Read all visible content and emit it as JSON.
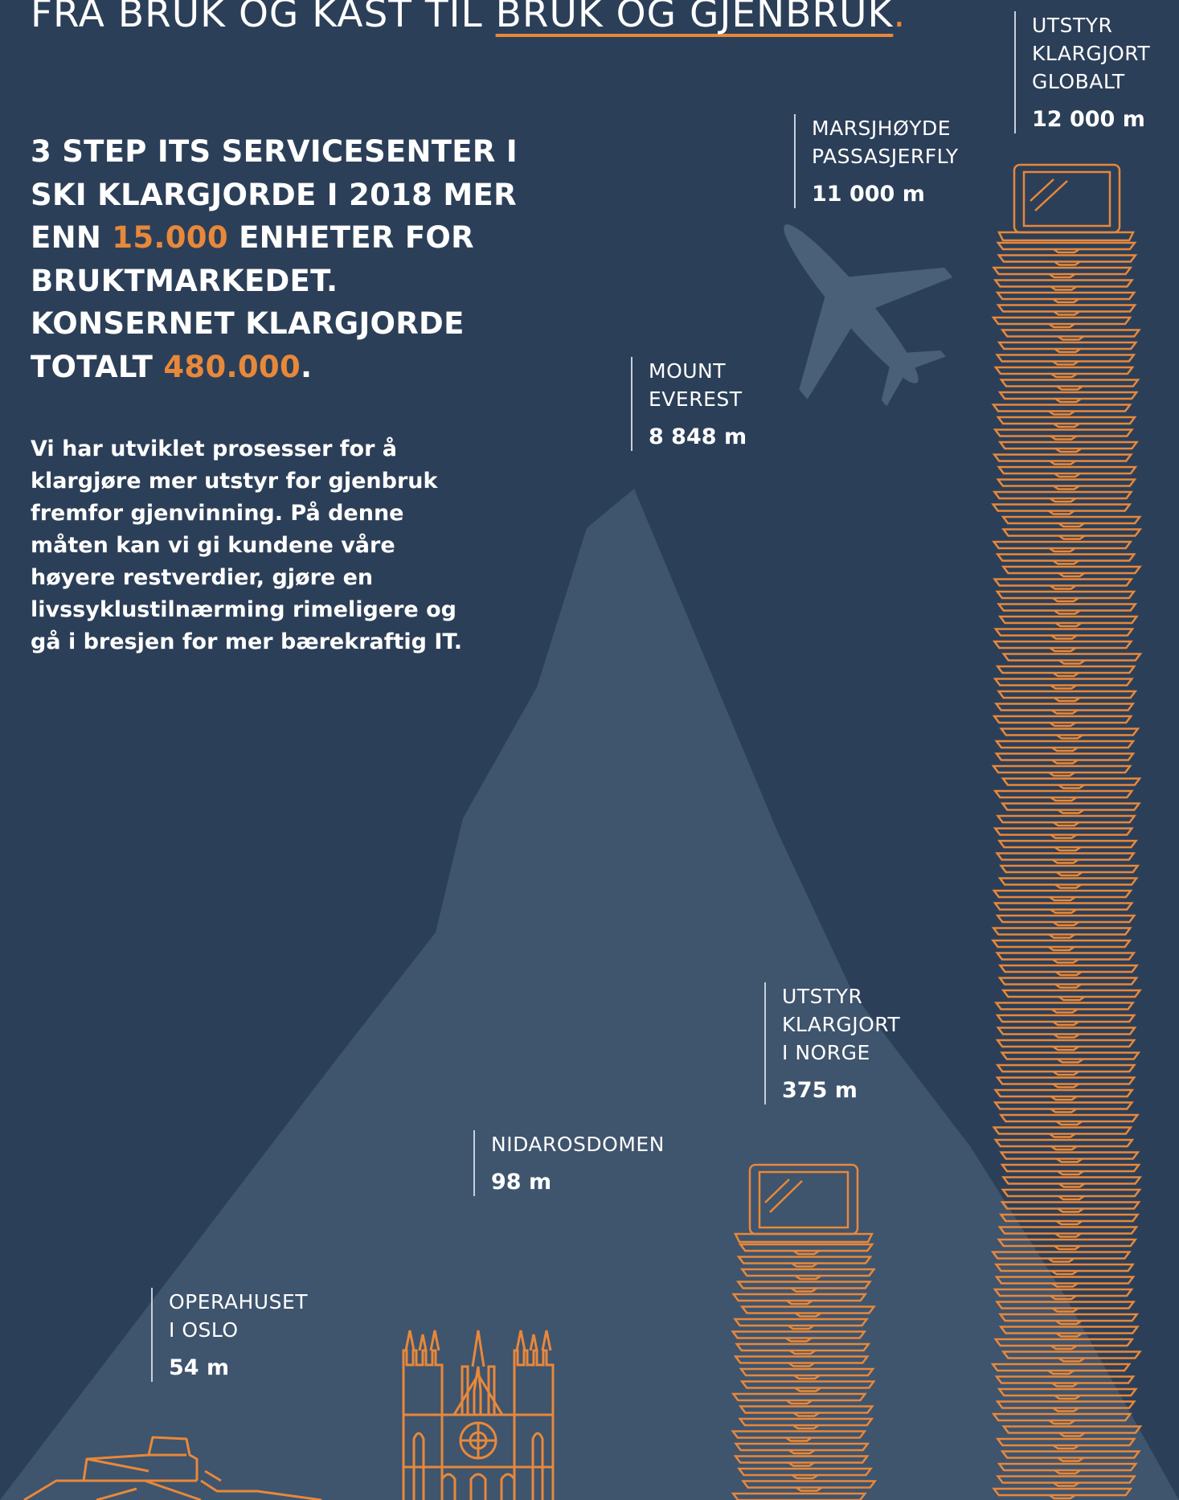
{
  "headline": {
    "part1": "FRA BRUK OG KAST TIL ",
    "part2": "BRUK OG GJENBRUK",
    "part3": "."
  },
  "lead": {
    "text1": "3 STEP ITS SERVICESENTER I SKI KLARGJORDE I 2018 MER ENN ",
    "highlight1": "15.000",
    "text2": " ENHETER FOR BRUKTMARKEDET. KONSERNET KLARGJORDE TOTALT ",
    "highlight2": "480.000",
    "text3": "."
  },
  "body_text": "Vi har utviklet prosesser for å klargjøre mer utstyr for gjenbruk fremfor gjenvinning. På denne måten kan vi gi kundene våre høyere restverdier, gjøre en livssyklustilnærming rimeligere og gå i bresjen for mer bærekraftig IT.",
  "comparisons": [
    {
      "id": "global",
      "label": "UTSTYR\nKLARGJORT\nGLOBALT",
      "value": "12 000 m",
      "height_m": 12000,
      "icon": "stacked-laptops-icon"
    },
    {
      "id": "plane",
      "label": "MARSJHØYDE\nPASSASJERFLY",
      "value": "11 000 m",
      "height_m": 11000,
      "icon": "airplane-icon"
    },
    {
      "id": "everest",
      "label": "MOUNT\nEVEREST",
      "value": "8 848 m",
      "height_m": 8848,
      "icon": "mountain-icon"
    },
    {
      "id": "norway",
      "label": "UTSTYR\nKLARGJORT\nI NORGE",
      "value": "375 m",
      "height_m": 375,
      "icon": "stacked-laptops-icon"
    },
    {
      "id": "nidaros",
      "label": "NIDAROSDOMEN",
      "value": "98 m",
      "height_m": 98,
      "icon": "cathedral-icon"
    },
    {
      "id": "opera",
      "label": "OPERAHUSET\nI OSLO",
      "value": "54 m",
      "height_m": 54,
      "icon": "opera-house-icon"
    }
  ],
  "colors": {
    "background": "#2c3f58",
    "mountain": "#3f546d",
    "accent": "#e8883a",
    "plane": "#4a5f78",
    "line": "#c7d0dd",
    "text": "#ffffff"
  }
}
